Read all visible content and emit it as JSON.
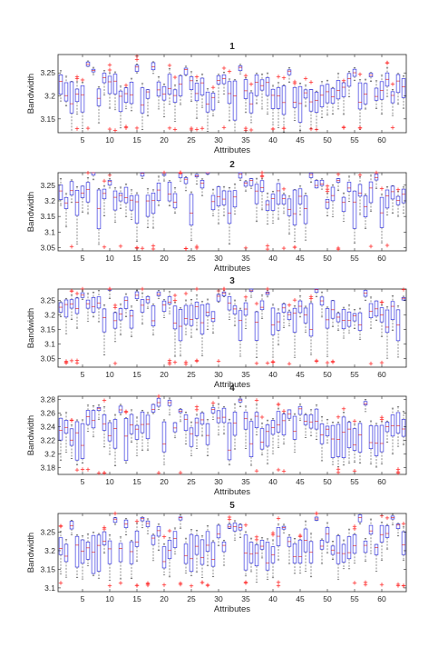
{
  "figure": {
    "background": "#ffffff"
  },
  "style": {
    "box_color": "#3a3ae0",
    "median_color": "#e03030",
    "whisker_color": "#444444",
    "outlier_color": "#ff2020",
    "axis_color": "#262626"
  },
  "chart_data": [
    {
      "type": "box",
      "title": "1",
      "xlabel": "Attributes",
      "ylabel": "Bandwidth",
      "xlim": [
        0.5,
        64.5
      ],
      "ylim": [
        3.12,
        3.29
      ],
      "xticks": [
        5,
        10,
        15,
        20,
        25,
        30,
        35,
        40,
        45,
        50,
        55,
        60
      ],
      "xtick_labels": [
        "5",
        "10",
        "15",
        "20",
        "25",
        "30",
        "35",
        "40",
        "45",
        "50",
        "55",
        "60"
      ],
      "yticks": [
        3.15,
        3.2,
        3.25
      ],
      "ytick_labels": [
        "3.15",
        "3.2",
        "3.25"
      ],
      "grid": false,
      "center": 3.205,
      "spread": 0.035,
      "whisker_floor": 3.12,
      "outlier_floor": 3.125
    },
    {
      "type": "box",
      "title": "2",
      "xlabel": "Attributes",
      "ylabel": "Bandwidth",
      "xlim": [
        0.5,
        64.5
      ],
      "ylim": [
        3.04,
        3.29
      ],
      "xticks": [
        5,
        10,
        15,
        20,
        25,
        30,
        35,
        40,
        45,
        50,
        55,
        60
      ],
      "xtick_labels": [
        "5",
        "10",
        "15",
        "20",
        "25",
        "30",
        "35",
        "40",
        "45",
        "50",
        "55",
        "60"
      ],
      "yticks": [
        3.05,
        3.1,
        3.15,
        3.2,
        3.25
      ],
      "ytick_labels": [
        "3.05",
        "3.1",
        "3.15",
        "3.2",
        "3.25"
      ],
      "grid": false,
      "center": 3.2,
      "spread": 0.05,
      "whisker_floor": 3.06,
      "outlier_floor": 3.045
    },
    {
      "type": "box",
      "title": "3",
      "xlabel": "Attributes",
      "ylabel": "Bandwidth",
      "xlim": [
        0.5,
        64.5
      ],
      "ylim": [
        3.02,
        3.29
      ],
      "xticks": [
        5,
        10,
        15,
        20,
        25,
        30,
        35,
        40,
        45,
        50,
        55,
        60
      ],
      "xtick_labels": [
        "5",
        "10",
        "15",
        "20",
        "25",
        "30",
        "35",
        "40",
        "45",
        "50",
        "55",
        "60"
      ],
      "yticks": [
        3.05,
        3.1,
        3.15,
        3.2,
        3.25
      ],
      "ytick_labels": [
        "3.05",
        "3.1",
        "3.15",
        "3.2",
        "3.25"
      ],
      "grid": false,
      "center": 3.2,
      "spread": 0.05,
      "whisker_floor": 3.05,
      "outlier_floor": 3.03
    },
    {
      "type": "box",
      "title": "4",
      "xlabel": "Attributes",
      "ylabel": "Bandwidth",
      "xlim": [
        0.5,
        64.5
      ],
      "ylim": [
        3.17,
        3.285
      ],
      "xticks": [
        5,
        10,
        15,
        20,
        25,
        30,
        35,
        40,
        45,
        50,
        55,
        60
      ],
      "xtick_labels": [
        "5",
        "10",
        "15",
        "20",
        "25",
        "30",
        "35",
        "40",
        "45",
        "50",
        "55",
        "60"
      ],
      "yticks": [
        3.18,
        3.2,
        3.22,
        3.24,
        3.26,
        3.28
      ],
      "ytick_labels": [
        "3.18",
        "3.2",
        "3.22",
        "3.24",
        "3.26",
        "3.28"
      ],
      "grid": false,
      "center": 3.235,
      "spread": 0.025,
      "whisker_floor": 3.18,
      "outlier_floor": 3.172
    },
    {
      "type": "box",
      "title": "5",
      "xlabel": "Attributes",
      "ylabel": "Bandwidth",
      "xlim": [
        0.5,
        64.5
      ],
      "ylim": [
        3.09,
        3.3
      ],
      "xticks": [
        5,
        10,
        15,
        20,
        25,
        30,
        35,
        40,
        45,
        50,
        55,
        60
      ],
      "xtick_labels": [
        "5",
        "10",
        "15",
        "20",
        "25",
        "30",
        "35",
        "40",
        "45",
        "50",
        "55",
        "60"
      ],
      "yticks": [
        3.1,
        3.15,
        3.2,
        3.25
      ],
      "ytick_labels": [
        "3.1",
        "3.15",
        "3.2",
        "3.25"
      ],
      "grid": false,
      "center": 3.21,
      "spread": 0.045,
      "whisker_floor": 3.12,
      "outlier_floor": 3.105
    }
  ]
}
